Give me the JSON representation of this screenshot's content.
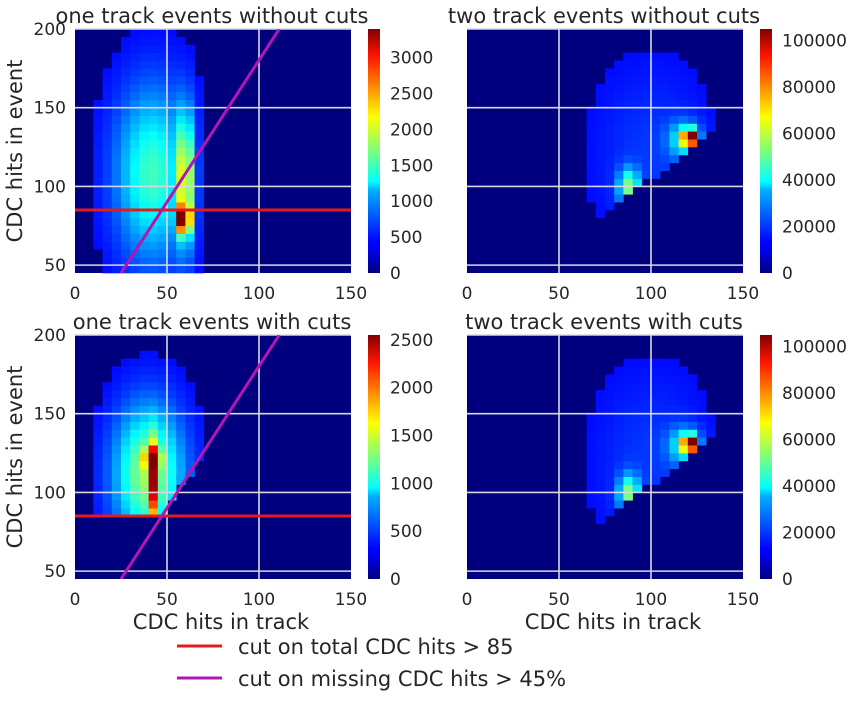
{
  "chart_data": [
    {
      "type": "heatmap",
      "title": "one track events without cuts",
      "xlabel": "",
      "ylabel": "CDC hits in event",
      "xlim": [
        0,
        150
      ],
      "ylim": [
        45,
        200
      ],
      "xticks": [
        "0",
        "50",
        "100",
        "150"
      ],
      "yticks": [
        "50",
        "100",
        "150",
        "200"
      ],
      "colorbar": {
        "min": 0,
        "max": 3400,
        "ticks": [
          "0",
          "500",
          "1000",
          "1500",
          "2000",
          "2500",
          "3000"
        ],
        "colormap": "jet"
      },
      "grid": true,
      "distribution": "one_nocut",
      "peak_region": {
        "x": [
          40,
          65
        ],
        "y": [
          60,
          140
        ]
      },
      "cut_lines": [
        {
          "kind": "horizontal",
          "y": 85,
          "color": "#e41a1c"
        },
        {
          "kind": "diagonal",
          "points": [
            [
              25,
              45
            ],
            [
              111,
              200
            ]
          ],
          "color": "#b217b2"
        }
      ]
    },
    {
      "type": "heatmap",
      "title": "two track events without cuts",
      "xlabel": "",
      "ylabel": "",
      "xlim": [
        0,
        150
      ],
      "ylim": [
        45,
        200
      ],
      "xticks": [
        "0",
        "50",
        "100",
        "150"
      ],
      "yticks": [],
      "colorbar": {
        "min": 0,
        "max": 105000,
        "ticks": [
          "0",
          "20000",
          "40000",
          "60000",
          "80000",
          "100000"
        ],
        "colormap": "jet"
      },
      "grid": true,
      "distribution": "two",
      "peak_region": {
        "x": [
          80,
          125
        ],
        "y": [
          90,
          130
        ]
      },
      "cut_lines": []
    },
    {
      "type": "heatmap",
      "title": "one track events with cuts",
      "xlabel": "CDC hits in track",
      "ylabel": "CDC hits in event",
      "xlim": [
        0,
        150
      ],
      "ylim": [
        45,
        200
      ],
      "xticks": [
        "0",
        "50",
        "100",
        "150"
      ],
      "yticks": [
        "50",
        "100",
        "150",
        "200"
      ],
      "colorbar": {
        "min": 0,
        "max": 2550,
        "ticks": [
          "0",
          "500",
          "1000",
          "1500",
          "2000",
          "2500"
        ],
        "colormap": "jet"
      },
      "grid": true,
      "distribution": "one_cut",
      "peak_region": {
        "x": [
          35,
          50
        ],
        "y": [
          90,
          130
        ]
      },
      "cut_lines": [
        {
          "kind": "horizontal",
          "y": 85,
          "color": "#e41a1c"
        },
        {
          "kind": "diagonal",
          "points": [
            [
              25,
              45
            ],
            [
              111,
              200
            ]
          ],
          "color": "#b217b2"
        }
      ]
    },
    {
      "type": "heatmap",
      "title": "two track events with cuts",
      "xlabel": "CDC hits in track",
      "ylabel": "",
      "xlim": [
        0,
        150
      ],
      "ylim": [
        45,
        200
      ],
      "xticks": [
        "0",
        "50",
        "100",
        "150"
      ],
      "yticks": [],
      "colorbar": {
        "min": 0,
        "max": 105000,
        "ticks": [
          "0",
          "20000",
          "40000",
          "60000",
          "80000",
          "100000"
        ],
        "colormap": "jet"
      },
      "grid": true,
      "distribution": "two",
      "peak_region": {
        "x": [
          80,
          125
        ],
        "y": [
          90,
          130
        ]
      },
      "cut_lines": []
    }
  ],
  "legend": {
    "placement": "bottom-center",
    "entries": [
      {
        "label": "cut on total CDC hits > 85",
        "color": "#e41a1c"
      },
      {
        "label": "cut on missing CDC hits > 45%",
        "color": "#b217b2"
      }
    ]
  }
}
